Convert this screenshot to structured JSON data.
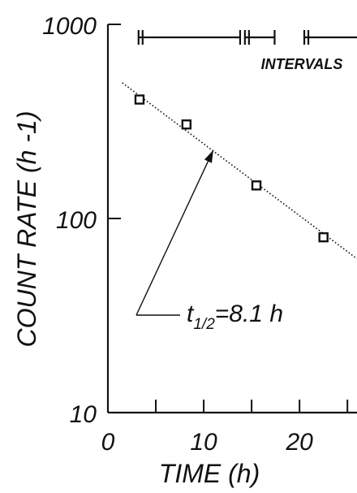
{
  "chart_data": {
    "type": "scatter",
    "scale_y": "log",
    "xlabel": "TIME (h)",
    "ylabel": "COUNT RATE (h -1)",
    "xlim": [
      0,
      26
    ],
    "ylim": [
      10,
      1000
    ],
    "x_ticks": [
      0,
      10,
      20
    ],
    "x_minor_ticks": [
      5,
      15,
      25
    ],
    "x_tick_labels": [
      "0",
      "10",
      "20"
    ],
    "y_ticks": [
      10,
      100,
      1000
    ],
    "y_tick_labels": [
      "10",
      "100",
      "1000"
    ],
    "points": [
      {
        "x": 3.3,
        "y": 410
      },
      {
        "x": 8.2,
        "y": 305
      },
      {
        "x": 15.5,
        "y": 148
      },
      {
        "x": 22.5,
        "y": 80
      }
    ],
    "fit_line": {
      "x": [
        1.5,
        26
      ],
      "y": [
        500,
        62
      ]
    },
    "intervals": [
      [
        3.2,
        13.8
      ],
      [
        14.3,
        17.4
      ],
      [
        20.5,
        26
      ]
    ],
    "intervals_label": "INTERVALS",
    "annotation": {
      "label_main": "t",
      "label_sub": "1/2",
      "label_rest": "=8.1 h",
      "arrow_to": {
        "x": 11,
        "y": 225
      }
    }
  }
}
